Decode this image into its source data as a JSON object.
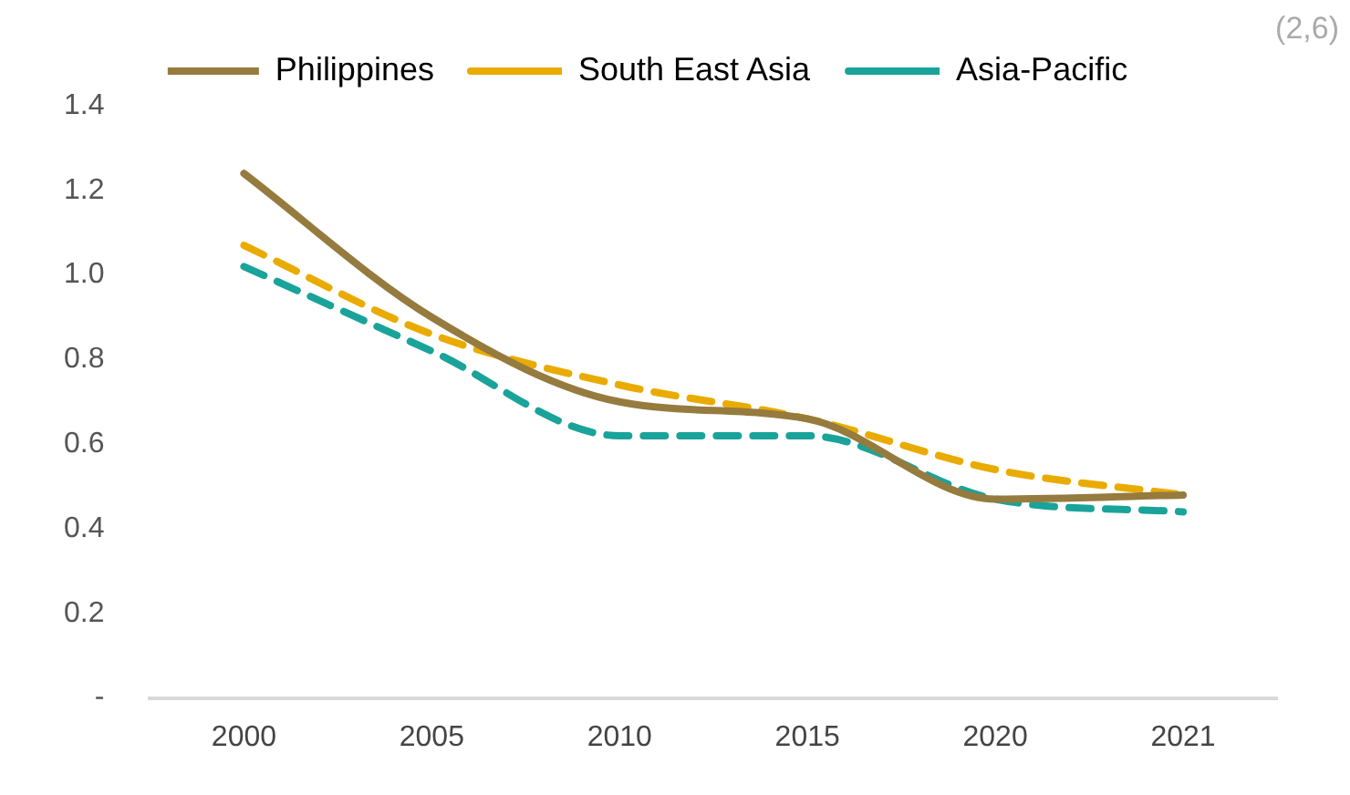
{
  "chart_data": {
    "type": "line",
    "categories": [
      "2000",
      "2005",
      "2010",
      "2015",
      "2020",
      "2021"
    ],
    "series": [
      {
        "name": "Philippines",
        "color": "#967b3f",
        "line_style": "solid",
        "values": [
          1.24,
          0.9,
          0.7,
          0.66,
          0.47,
          0.48
        ]
      },
      {
        "name": "South East Asia",
        "color": "#eaab00",
        "line_style": "dashed",
        "values": [
          1.07,
          0.86,
          0.74,
          0.66,
          0.54,
          0.48
        ]
      },
      {
        "name": "Asia-Pacific",
        "color": "#1aa39a",
        "line_style": "dashed",
        "values": [
          1.02,
          0.82,
          0.62,
          0.62,
          0.47,
          0.44
        ]
      }
    ],
    "ylim": [
      0,
      1.4
    ],
    "yticks": [
      {
        "value": 0,
        "label": "-"
      },
      0.2,
      0.4,
      0.6,
      0.8,
      {
        "value": 1,
        "label": "1.0"
      },
      1.2,
      1.4
    ],
    "grid": false,
    "legend": "top",
    "marker": "none",
    "annotations": [
      "(2,6)"
    ]
  }
}
